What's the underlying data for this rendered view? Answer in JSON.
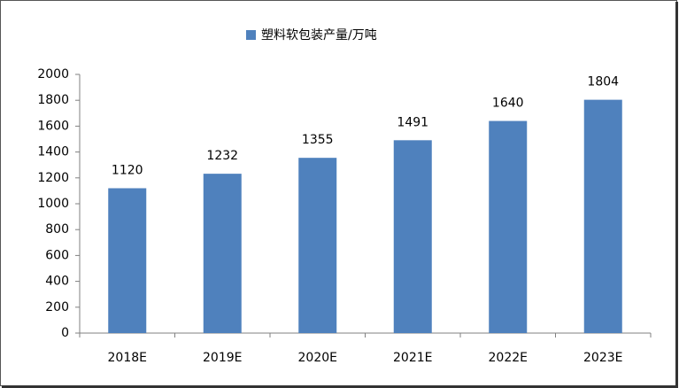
{
  "chart_data": {
    "type": "bar",
    "categories": [
      "2018E",
      "2019E",
      "2020E",
      "2021E",
      "2022E",
      "2023E"
    ],
    "series": [
      {
        "name": "塑料软包装产量/万吨",
        "color": "#4f81bd",
        "values": [
          1120,
          1232,
          1355,
          1491,
          1640,
          1804
        ]
      }
    ],
    "ylim": [
      0,
      2000
    ],
    "yticks": [
      0,
      200,
      400,
      600,
      800,
      1000,
      1200,
      1400,
      1600,
      1800,
      2000
    ],
    "grid": false,
    "legend": "top",
    "data_labels": true
  }
}
